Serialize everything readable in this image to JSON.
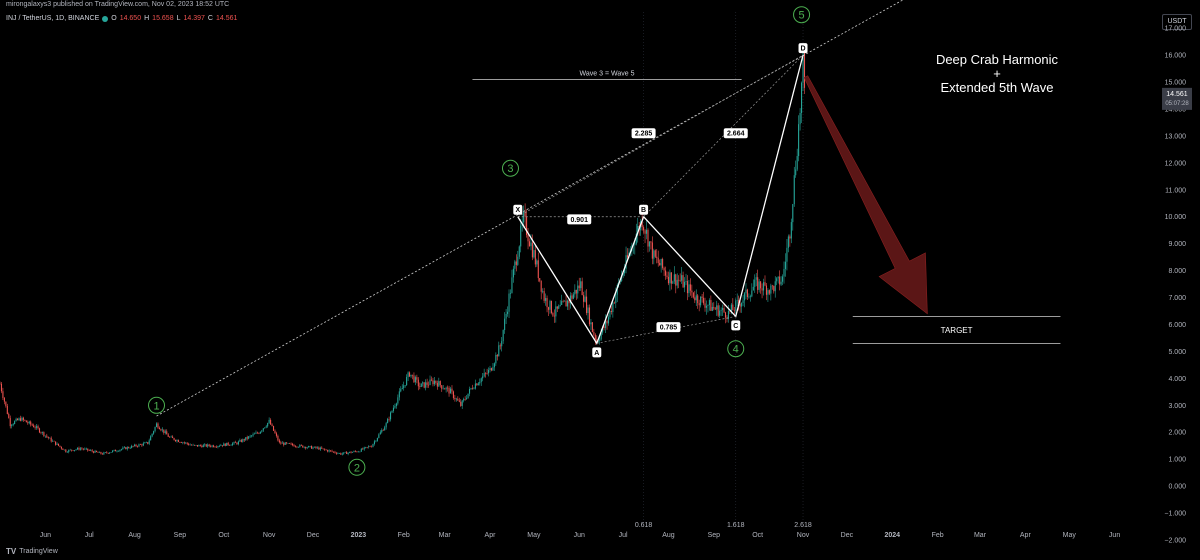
{
  "header": {
    "publisher": "mirongalaxys3 published on TradingView.com, Nov 02, 2023 18:52 UTC",
    "symbol": "INJ / TetherUS, 1D, BINANCE",
    "ohlc": [
      {
        "k": "O",
        "v": "14.650"
      },
      {
        "k": "H",
        "v": "15.658"
      },
      {
        "k": "L",
        "v": "14.397"
      },
      {
        "k": "C",
        "v": "14.561"
      }
    ],
    "currency": "USDT"
  },
  "footer": {
    "brand": "TradingView",
    "logo_glyph": "TV"
  },
  "chart_data": {
    "type": "candlestick",
    "title_lines": [
      "Deep Crab Harmonic",
      "+",
      "Extended 5th Wave"
    ],
    "ylim": [
      -2,
      17.6
    ],
    "y_ticks": [
      17,
      16,
      15,
      14,
      13,
      12,
      11,
      10,
      9,
      8,
      7,
      6,
      5,
      4,
      3,
      2,
      1,
      0,
      -1,
      -2
    ],
    "y_tick_labels": [
      "17.000",
      "16.000",
      "15.000",
      "14.000",
      "13.000",
      "12.000",
      "11.000",
      "10.000",
      "9.000",
      "8.000",
      "7.000",
      "6.000",
      "5.000",
      "4.000",
      "3.000",
      "2.000",
      "1.000",
      "0.000",
      "−1.000",
      "−2.000"
    ],
    "x_range": [
      "2022-05-01",
      "2024-06-30"
    ],
    "x_ticks": [
      {
        "date": "2022-06-01",
        "label": "Jun"
      },
      {
        "date": "2022-07-01",
        "label": "Jul"
      },
      {
        "date": "2022-08-01",
        "label": "Aug"
      },
      {
        "date": "2022-09-01",
        "label": "Sep"
      },
      {
        "date": "2022-10-01",
        "label": "Oct"
      },
      {
        "date": "2022-11-01",
        "label": "Nov"
      },
      {
        "date": "2022-12-01",
        "label": "Dec"
      },
      {
        "date": "2023-01-01",
        "label": "2023"
      },
      {
        "date": "2023-02-01",
        "label": "Feb"
      },
      {
        "date": "2023-03-01",
        "label": "Mar"
      },
      {
        "date": "2023-04-01",
        "label": "Apr"
      },
      {
        "date": "2023-05-01",
        "label": "May"
      },
      {
        "date": "2023-06-01",
        "label": "Jun"
      },
      {
        "date": "2023-07-01",
        "label": "Jul"
      },
      {
        "date": "2023-08-01",
        "label": "Aug"
      },
      {
        "date": "2023-09-01",
        "label": "Sep"
      },
      {
        "date": "2023-10-01",
        "label": "Oct"
      },
      {
        "date": "2023-11-01",
        "label": "Nov"
      },
      {
        "date": "2023-12-01",
        "label": "Dec"
      },
      {
        "date": "2024-01-01",
        "label": "2024"
      },
      {
        "date": "2024-02-01",
        "label": "Feb"
      },
      {
        "date": "2024-03-01",
        "label": "Mar"
      },
      {
        "date": "2024-04-01",
        "label": "Apr"
      },
      {
        "date": "2024-05-01",
        "label": "May"
      },
      {
        "date": "2024-06-01",
        "label": "Jun"
      }
    ],
    "price_path": [
      [
        "2022-05-01",
        3.8
      ],
      [
        "2022-05-08",
        2.3
      ],
      [
        "2022-05-15",
        2.5
      ],
      [
        "2022-05-25",
        2.2
      ],
      [
        "2022-06-05",
        1.7
      ],
      [
        "2022-06-15",
        1.3
      ],
      [
        "2022-06-25",
        1.4
      ],
      [
        "2022-07-10",
        1.2
      ],
      [
        "2022-07-25",
        1.4
      ],
      [
        "2022-08-10",
        1.6
      ],
      [
        "2022-08-16",
        2.3
      ],
      [
        "2022-08-25",
        1.8
      ],
      [
        "2022-09-10",
        1.5
      ],
      [
        "2022-09-25",
        1.5
      ],
      [
        "2022-10-10",
        1.6
      ],
      [
        "2022-10-25",
        2.0
      ],
      [
        "2022-11-01",
        2.4
      ],
      [
        "2022-11-08",
        1.6
      ],
      [
        "2022-11-20",
        1.5
      ],
      [
        "2022-12-05",
        1.4
      ],
      [
        "2022-12-20",
        1.2
      ],
      [
        "2023-01-01",
        1.3
      ],
      [
        "2023-01-10",
        1.5
      ],
      [
        "2023-01-20",
        2.3
      ],
      [
        "2023-01-28",
        3.3
      ],
      [
        "2023-02-05",
        4.2
      ],
      [
        "2023-02-12",
        3.7
      ],
      [
        "2023-02-22",
        3.9
      ],
      [
        "2023-03-05",
        3.5
      ],
      [
        "2023-03-12",
        3.0
      ],
      [
        "2023-03-20",
        3.7
      ],
      [
        "2023-04-01",
        4.3
      ],
      [
        "2023-04-08",
        5.2
      ],
      [
        "2023-04-14",
        7.0
      ],
      [
        "2023-04-20",
        8.8
      ],
      [
        "2023-04-24",
        9.9
      ],
      [
        "2023-05-01",
        8.6
      ],
      [
        "2023-05-08",
        7.0
      ],
      [
        "2023-05-15",
        6.4
      ],
      [
        "2023-05-25",
        6.9
      ],
      [
        "2023-06-02",
        7.5
      ],
      [
        "2023-06-10",
        5.8
      ],
      [
        "2023-06-13",
        5.4
      ],
      [
        "2023-06-20",
        6.1
      ],
      [
        "2023-06-28",
        7.5
      ],
      [
        "2023-07-05",
        8.6
      ],
      [
        "2023-07-10",
        9.4
      ],
      [
        "2023-07-14",
        9.9
      ],
      [
        "2023-07-22",
        8.5
      ],
      [
        "2023-08-01",
        7.8
      ],
      [
        "2023-08-10",
        7.6
      ],
      [
        "2023-08-20",
        7.0
      ],
      [
        "2023-09-01",
        6.6
      ],
      [
        "2023-09-11",
        6.4
      ],
      [
        "2023-09-20",
        6.9
      ],
      [
        "2023-09-30",
        7.5
      ],
      [
        "2023-10-10",
        7.3
      ],
      [
        "2023-10-18",
        7.7
      ],
      [
        "2023-10-23",
        9.5
      ],
      [
        "2023-10-27",
        12.0
      ],
      [
        "2023-10-30",
        14.0
      ],
      [
        "2023-11-01",
        15.6
      ],
      [
        "2023-11-02",
        14.56
      ]
    ],
    "wave_labels": [
      {
        "label": "1",
        "date": "2022-08-16",
        "value": 3.0
      },
      {
        "label": "2",
        "date": "2022-12-31",
        "value": 0.7
      },
      {
        "label": "3",
        "date": "2023-04-15",
        "value": 11.8
      },
      {
        "label": "4",
        "date": "2023-09-16",
        "value": 5.1
      },
      {
        "label": "5",
        "date": "2023-10-31",
        "value": 17.5
      }
    ],
    "harmonic_points": [
      {
        "label": "X",
        "date": "2023-04-20",
        "value": 10.0
      },
      {
        "label": "A",
        "date": "2023-06-13",
        "value": 5.3
      },
      {
        "label": "B",
        "date": "2023-07-15",
        "value": 10.0
      },
      {
        "label": "C",
        "date": "2023-09-16",
        "value": 6.3
      },
      {
        "label": "D",
        "date": "2023-11-01",
        "value": 16.0
      }
    ],
    "ratios": [
      {
        "label": "0.901",
        "date": "2023-06-01",
        "value": 9.9
      },
      {
        "label": "2.285",
        "date": "2023-07-15",
        "value": 13.1
      },
      {
        "label": "2.664",
        "date": "2023-09-16",
        "value": 13.1
      },
      {
        "label": "0.785",
        "date": "2023-08-01",
        "value": 5.9
      }
    ],
    "wave_note": {
      "label": "Wave 3 = Wave 5",
      "date_start": "2023-03-20",
      "date_end": "2023-09-20",
      "value": 15.1
    },
    "target": {
      "label": "TARGET",
      "date_start": "2023-12-05",
      "date_end": "2024-04-25",
      "upper": 6.3,
      "lower": 5.3
    },
    "fib_time": [
      {
        "label": "0.618",
        "date": "2023-07-15"
      },
      {
        "label": "1.618",
        "date": "2023-09-16"
      },
      {
        "label": "2.618",
        "date": "2023-11-01"
      }
    ],
    "trendline": {
      "start": [
        "2022-08-16",
        2.6
      ],
      "through": [
        "2023-04-20",
        10.0
      ],
      "end": [
        "2024-01-10",
        18.1
      ]
    },
    "projection_arrow": {
      "from": [
        "2023-11-03",
        15.2
      ],
      "to": [
        "2024-01-25",
        6.4
      ],
      "color": "#6b1a1a"
    },
    "last_price": {
      "value": 14.561,
      "label": "14.561",
      "countdown": "05:07:28",
      "color": "#ef5350"
    },
    "colors": {
      "up": "#26a69a",
      "down": "#ef5350",
      "wave_label": "#4caf50",
      "line": "#ffffff",
      "target_line": "#cfcfcf"
    }
  }
}
